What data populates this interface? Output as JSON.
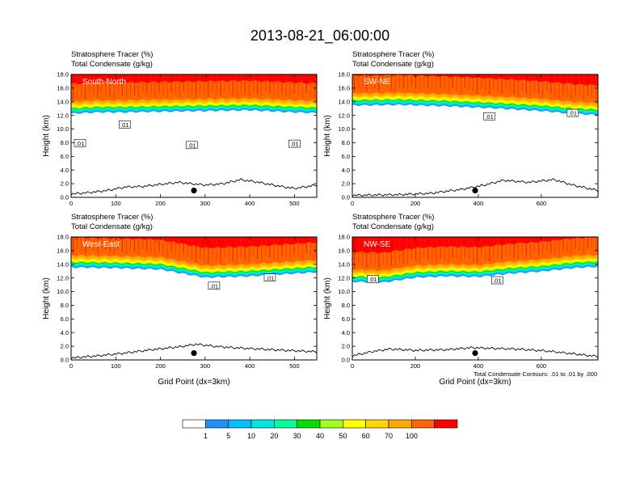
{
  "title": "2013-08-21_06:00:00",
  "colors": {
    "bands": [
      "#ffffff",
      "#1e90ff",
      "#00bfff",
      "#00e5e5",
      "#00ff99",
      "#00e000",
      "#a0ff20",
      "#ffff00",
      "#ffd700",
      "#ffaa00",
      "#ff6600",
      "#ff0000"
    ],
    "terrain": "#000000",
    "marker": "#000000"
  },
  "colorbar": {
    "labels": [
      "1",
      "5",
      "10",
      "20",
      "30",
      "40",
      "50",
      "60",
      "70",
      "100"
    ],
    "levels": [
      1,
      5,
      10,
      20,
      30,
      40,
      50,
      60,
      70,
      100
    ]
  },
  "note": "Total Condensate Contours: .01 to .01 by .000",
  "chart_data": [
    {
      "type": "heatmap",
      "panel_label": "South-North",
      "header_line1": "Stratosphere Tracer   (%)",
      "header_line2": "Total Condensate   (g/kg)",
      "ylabel": "Height (km)",
      "xlabel": "",
      "xlim": [
        0,
        550
      ],
      "ylim": [
        0,
        18
      ],
      "xticks": [
        0,
        100,
        200,
        300,
        400,
        500
      ],
      "yticks": [
        "0.0",
        "2.0",
        "4.0",
        "6.0",
        "8.0",
        "10.0",
        "12.0",
        "14.0",
        "16.0",
        "18.0"
      ],
      "tracer_base_km": [
        [
          0,
          12.6
        ],
        [
          60,
          12.8
        ],
        [
          120,
          12.8
        ],
        [
          200,
          12.9
        ],
        [
          300,
          13.0
        ],
        [
          400,
          13.1
        ],
        [
          500,
          12.8
        ],
        [
          550,
          12.7
        ]
      ],
      "contour_labels": [
        {
          "x": 20,
          "y": 7.9,
          "text": ".01"
        },
        {
          "x": 120,
          "y": 10.6,
          "text": ".01"
        },
        {
          "x": 270,
          "y": 7.6,
          "text": ".01"
        },
        {
          "x": 500,
          "y": 7.8,
          "text": ".01"
        }
      ],
      "marker": {
        "x": 275,
        "y": 1.0
      },
      "terrain_km": [
        [
          0,
          0.5
        ],
        [
          40,
          0.7
        ],
        [
          80,
          1.0
        ],
        [
          120,
          1.5
        ],
        [
          160,
          1.6
        ],
        [
          200,
          1.9
        ],
        [
          240,
          2.2
        ],
        [
          270,
          2.0
        ],
        [
          300,
          1.8
        ],
        [
          340,
          2.0
        ],
        [
          380,
          2.6
        ],
        [
          420,
          2.2
        ],
        [
          460,
          1.7
        ],
        [
          500,
          1.3
        ],
        [
          550,
          1.8
        ]
      ]
    },
    {
      "type": "heatmap",
      "panel_label": "SW-NE",
      "header_line1": "Stratosphere Tracer   (%)",
      "header_line2": "Total Condensate   (g/kg)",
      "ylabel": "Height (km)",
      "xlabel": "",
      "xlim": [
        0,
        780
      ],
      "ylim": [
        0,
        18
      ],
      "xticks": [
        0,
        200,
        400,
        600
      ],
      "yticks": [
        "0.0",
        "2.0",
        "4.0",
        "6.0",
        "8.0",
        "10.0",
        "12.0",
        "14.0",
        "16.0",
        "18.0"
      ],
      "tracer_base_km": [
        [
          0,
          13.8
        ],
        [
          150,
          13.9
        ],
        [
          300,
          13.7
        ],
        [
          450,
          13.4
        ],
        [
          600,
          13.0
        ],
        [
          700,
          12.6
        ],
        [
          780,
          12.4
        ]
      ],
      "contour_labels": [
        {
          "x": 435,
          "y": 11.8,
          "text": ".01"
        },
        {
          "x": 700,
          "y": 12.3,
          "text": ".01"
        }
      ],
      "marker": {
        "x": 390,
        "y": 1.0
      },
      "terrain_km": [
        [
          0,
          0.3
        ],
        [
          150,
          0.4
        ],
        [
          250,
          0.6
        ],
        [
          350,
          1.2
        ],
        [
          420,
          1.8
        ],
        [
          480,
          2.5
        ],
        [
          560,
          2.2
        ],
        [
          640,
          2.6
        ],
        [
          700,
          1.8
        ],
        [
          780,
          1.0
        ]
      ]
    },
    {
      "type": "heatmap",
      "panel_label": "West-East",
      "header_line1": "Stratosphere Tracer   (%)",
      "header_line2": "Total Condensate   (g/kg)",
      "ylabel": "Height (km)",
      "xlabel": "Grid Point (dx=3km)",
      "xlim": [
        0,
        550
      ],
      "ylim": [
        0,
        18
      ],
      "xticks": [
        0,
        100,
        200,
        300,
        400,
        500
      ],
      "yticks": [
        "0.0",
        "2.0",
        "4.0",
        "6.0",
        "8.0",
        "10.0",
        "12.0",
        "14.0",
        "16.0",
        "18.0"
      ],
      "tracer_base_km": [
        [
          0,
          13.9
        ],
        [
          100,
          13.8
        ],
        [
          200,
          13.6
        ],
        [
          300,
          12.4
        ],
        [
          400,
          12.6
        ],
        [
          500,
          13.0
        ],
        [
          550,
          13.2
        ]
      ],
      "contour_labels": [
        {
          "x": 320,
          "y": 10.8,
          "text": ".01"
        },
        {
          "x": 445,
          "y": 12.0,
          "text": ".01"
        }
      ],
      "marker": {
        "x": 275,
        "y": 1.0
      },
      "terrain_km": [
        [
          0,
          0.3
        ],
        [
          60,
          0.6
        ],
        [
          120,
          1.0
        ],
        [
          180,
          1.5
        ],
        [
          240,
          1.9
        ],
        [
          280,
          2.3
        ],
        [
          320,
          2.0
        ],
        [
          360,
          1.8
        ],
        [
          420,
          1.6
        ],
        [
          480,
          1.4
        ],
        [
          550,
          1.2
        ]
      ]
    },
    {
      "type": "heatmap",
      "panel_label": "NW-SE",
      "header_line1": "Stratosphere Tracer   (%)",
      "header_line2": "Total Condensate   (g/kg)",
      "ylabel": "Height (km)",
      "xlabel": "Grid Point (dx=3km)",
      "xlim": [
        0,
        780
      ],
      "ylim": [
        0,
        18
      ],
      "xticks": [
        0,
        200,
        400,
        600
      ],
      "yticks": [
        "0.0",
        "2.0",
        "4.0",
        "6.0",
        "8.0",
        "10.0",
        "12.0",
        "14.0",
        "16.0",
        "18.0"
      ],
      "tracer_base_km": [
        [
          0,
          11.8
        ],
        [
          100,
          11.7
        ],
        [
          200,
          12.4
        ],
        [
          300,
          12.6
        ],
        [
          400,
          12.5
        ],
        [
          500,
          13.0
        ],
        [
          600,
          13.3
        ],
        [
          700,
          13.8
        ],
        [
          780,
          14.0
        ]
      ],
      "contour_labels": [
        {
          "x": 65,
          "y": 11.8,
          "text": ".01"
        },
        {
          "x": 460,
          "y": 11.6,
          "text": ".01"
        }
      ],
      "marker": {
        "x": 390,
        "y": 1.0
      },
      "terrain_km": [
        [
          0,
          0.6
        ],
        [
          60,
          1.2
        ],
        [
          120,
          1.6
        ],
        [
          200,
          1.4
        ],
        [
          300,
          1.5
        ],
        [
          380,
          1.8
        ],
        [
          440,
          1.7
        ],
        [
          520,
          1.6
        ],
        [
          620,
          1.3
        ],
        [
          720,
          0.8
        ],
        [
          780,
          0.5
        ]
      ]
    }
  ]
}
